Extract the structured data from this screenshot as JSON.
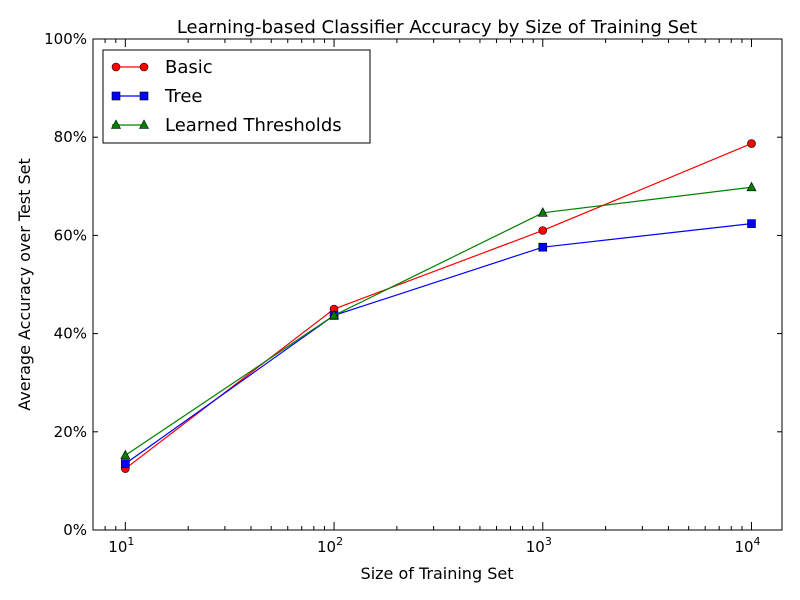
{
  "chart_data": {
    "type": "line",
    "title": "Learning-based Classifier Accuracy by Size of Training Set",
    "xlabel": "Size of Training Set",
    "ylabel": "Average Accuracy over Test Set",
    "x_scale": "log",
    "x": [
      10,
      100,
      1000,
      10000
    ],
    "xlim": [
      7,
      14000
    ],
    "ylim": [
      0,
      1
    ],
    "y_ticks": [
      {
        "value": 0,
        "label": "0%"
      },
      {
        "value": 0.2,
        "label": "20%"
      },
      {
        "value": 0.4,
        "label": "40%"
      },
      {
        "value": 0.6,
        "label": "60%"
      },
      {
        "value": 0.8,
        "label": "80%"
      },
      {
        "value": 1.0,
        "label": "100%"
      }
    ],
    "x_ticks": [
      {
        "value": 10,
        "base": "10",
        "exp": "1"
      },
      {
        "value": 100,
        "base": "10",
        "exp": "2"
      },
      {
        "value": 1000,
        "base": "10",
        "exp": "3"
      },
      {
        "value": 10000,
        "base": "10",
        "exp": "4"
      }
    ],
    "grid": false,
    "legend_position": "top-left",
    "series": [
      {
        "name": "Basic",
        "color": "#ff0000",
        "marker": "circle",
        "values": [
          0.125,
          0.45,
          0.61,
          0.787
        ]
      },
      {
        "name": "Tree",
        "color": "#0000ff",
        "marker": "square",
        "values": [
          0.135,
          0.437,
          0.576,
          0.624
        ]
      },
      {
        "name": "Learned Thresholds",
        "color": "#008000",
        "marker": "triangle",
        "values": [
          0.152,
          0.437,
          0.646,
          0.698
        ]
      }
    ]
  }
}
